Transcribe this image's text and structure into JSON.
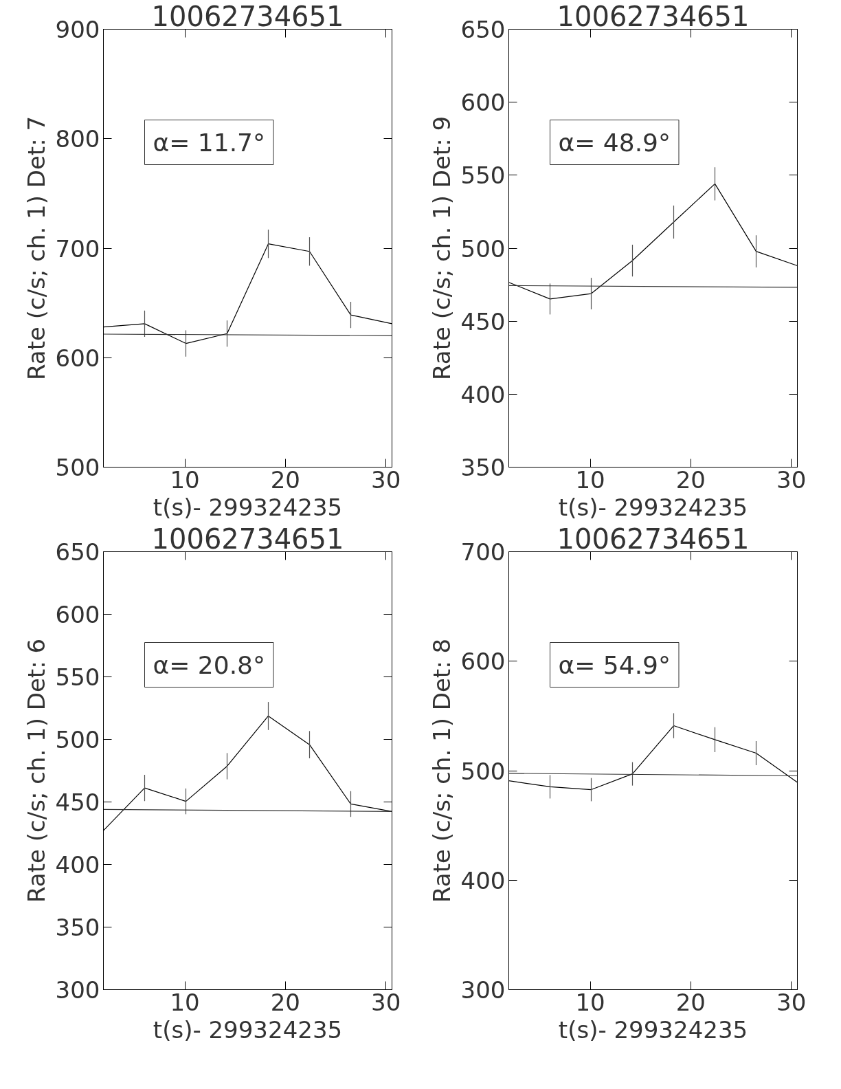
{
  "chart_data": [
    {
      "type": "line",
      "title": "10062734651",
      "xlabel": "t(s)- 299324235",
      "ylabel": "Rate (c/s; ch. 1) Det: 7",
      "annotations": [
        "α= 11.7°"
      ],
      "xlim": [
        1.9,
        30.6
      ],
      "ylim": [
        500,
        900
      ],
      "xticks": [
        10,
        20,
        30
      ],
      "yticks": [
        500,
        600,
        700,
        800,
        900
      ],
      "series": [
        {
          "color": "#000000",
          "x": [
            1.9,
            6.0,
            10.1,
            14.2,
            18.3,
            22.4,
            26.5,
            30.6
          ],
          "values": [
            628,
            631,
            613,
            622,
            704,
            697,
            639,
            631
          ],
          "errors": [
            null,
            12,
            12,
            12,
            13,
            13,
            12,
            null
          ]
        },
        {
          "type": "line",
          "color": "#333333",
          "x": [
            1.9,
            30.6
          ],
          "values": [
            621.5,
            620.2
          ]
        }
      ]
    },
    {
      "type": "line",
      "title": "10062734651",
      "xlabel": "t(s)- 299324235",
      "ylabel": "Rate (c/s; ch. 1) Det: 9",
      "annotations": [
        "α= 48.9°"
      ],
      "xlim": [
        1.9,
        30.6
      ],
      "ylim": [
        350,
        650
      ],
      "xticks": [
        10,
        20,
        30
      ],
      "yticks": [
        350,
        400,
        450,
        500,
        550,
        600,
        650
      ],
      "series": [
        {
          "color": "#000000",
          "x": [
            1.9,
            6.0,
            10.1,
            14.2,
            18.3,
            22.4,
            26.5,
            30.6
          ],
          "values": [
            476.6,
            465.2,
            468.9,
            491.5,
            517.9,
            544.1,
            497.8,
            488.0
          ],
          "errors": [
            null,
            10.6,
            10.8,
            10.9,
            11.3,
            11.4,
            11.0,
            null
          ]
        },
        {
          "type": "line",
          "color": "#333333",
          "x": [
            1.9,
            30.6
          ],
          "values": [
            474.4,
            473.2
          ]
        }
      ]
    },
    {
      "type": "line",
      "title": "10062734651",
      "xlabel": "t(s)- 299324235",
      "ylabel": "Rate (c/s; ch. 1) Det: 6",
      "annotations": [
        "α= 20.8°"
      ],
      "xlim": [
        1.9,
        30.6
      ],
      "ylim": [
        300,
        650
      ],
      "xticks": [
        10,
        20,
        30
      ],
      "yticks": [
        300,
        350,
        400,
        450,
        500,
        550,
        600,
        650
      ],
      "series": [
        {
          "color": "#000000",
          "x": [
            1.9,
            6.0,
            10.1,
            14.2,
            18.3,
            22.4,
            26.5,
            30.6
          ],
          "values": [
            427.1,
            461.2,
            450.5,
            478.6,
            518.7,
            495.8,
            448.4,
            442.4
          ],
          "errors": [
            null,
            10.5,
            10.3,
            10.5,
            11.2,
            10.9,
            10.3,
            null
          ]
        },
        {
          "type": "line",
          "color": "#333333",
          "x": [
            1.9,
            30.6
          ],
          "values": [
            444.0,
            442.4
          ]
        }
      ]
    },
    {
      "type": "line",
      "title": "10062734651",
      "xlabel": "t(s)- 299324235",
      "ylabel": "Rate (c/s; ch. 1) Det: 8",
      "annotations": [
        "α= 54.9°"
      ],
      "xlim": [
        1.9,
        30.6
      ],
      "ylim": [
        300,
        700
      ],
      "xticks": [
        10,
        20,
        30
      ],
      "yticks": [
        300,
        400,
        500,
        600,
        700
      ],
      "series": [
        {
          "color": "#000000",
          "x": [
            1.9,
            6.0,
            10.1,
            14.2,
            18.3,
            22.4,
            26.5,
            30.6
          ],
          "values": [
            490.8,
            485.3,
            482.7,
            497.1,
            541.1,
            528.3,
            516.0,
            489.3
          ],
          "errors": [
            null,
            10.7,
            10.6,
            10.7,
            11.4,
            11.4,
            11.0,
            null
          ]
        },
        {
          "type": "line",
          "color": "#333333",
          "x": [
            1.9,
            30.6
          ],
          "values": [
            497.6,
            495.3
          ]
        }
      ]
    }
  ]
}
